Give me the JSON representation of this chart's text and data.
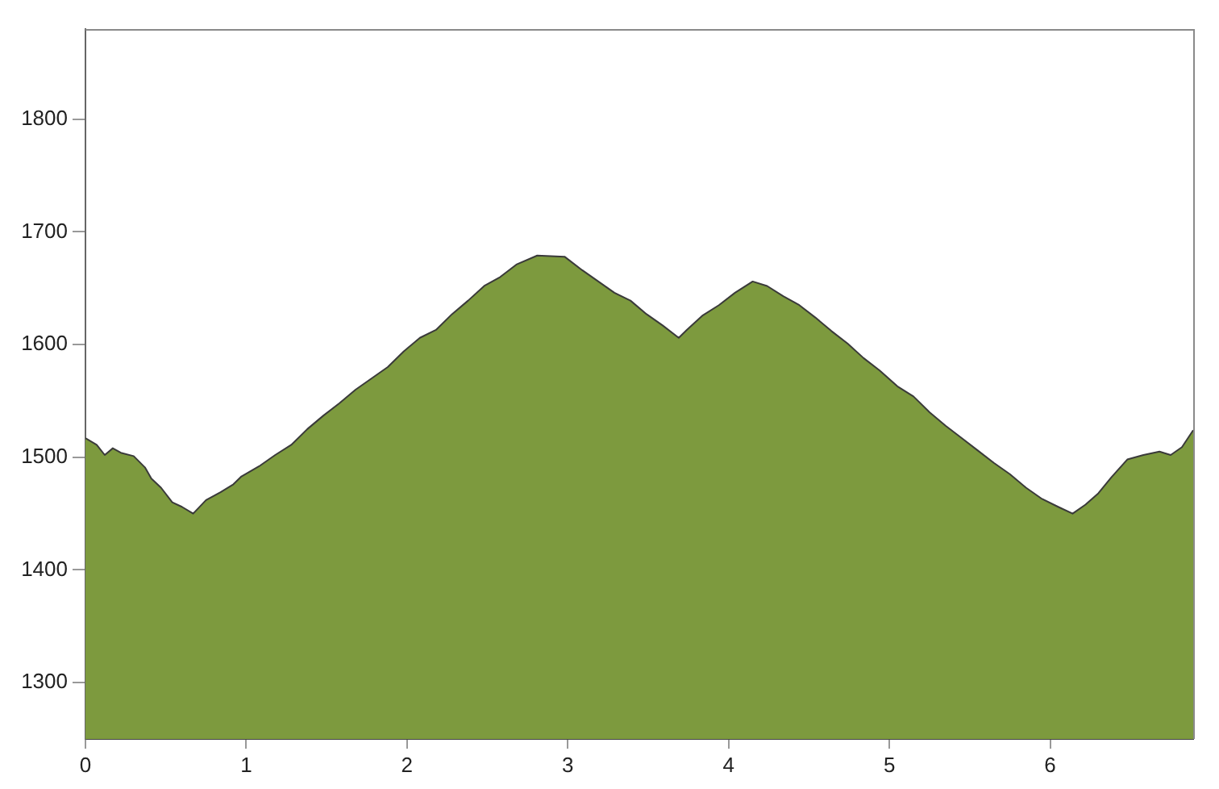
{
  "chart_data": {
    "type": "area",
    "x": [
      0,
      0.07,
      0.12,
      0.17,
      0.22,
      0.3,
      0.37,
      0.41,
      0.47,
      0.54,
      0.6,
      0.67,
      0.75,
      0.84,
      0.92,
      0.97,
      1.08,
      1.18,
      1.28,
      1.38,
      1.48,
      1.58,
      1.68,
      1.78,
      1.88,
      1.98,
      2.08,
      2.18,
      2.28,
      2.38,
      2.48,
      2.58,
      2.68,
      2.81,
      2.98,
      3.09,
      3.19,
      3.29,
      3.39,
      3.49,
      3.59,
      3.69,
      3.74,
      3.84,
      3.94,
      4.04,
      4.15,
      4.24,
      4.34,
      4.44,
      4.54,
      4.64,
      4.74,
      4.84,
      4.94,
      5.05,
      5.15,
      5.25,
      5.35,
      5.45,
      5.55,
      5.65,
      5.75,
      5.85,
      5.95,
      6.05,
      6.14,
      6.22,
      6.3,
      6.38,
      6.48,
      6.58,
      6.68,
      6.75,
      6.82,
      6.89
    ],
    "series": [
      {
        "color": "#7d9a3e",
        "values": [
          1517,
          1511,
          1502,
          1508,
          1504,
          1501,
          1491,
          1481,
          1473,
          1460,
          1456,
          1450,
          1462,
          1469,
          1476,
          1483,
          1492,
          1502,
          1511,
          1525,
          1537,
          1548,
          1560,
          1570,
          1580,
          1594,
          1606,
          1613,
          1627,
          1639,
          1652,
          1660,
          1671,
          1679,
          1678,
          1666,
          1656,
          1646,
          1639,
          1627,
          1617,
          1606,
          1613,
          1626,
          1635,
          1646,
          1656,
          1652,
          1643,
          1635,
          1624,
          1612,
          1601,
          1588,
          1577,
          1563,
          1554,
          1540,
          1528,
          1517,
          1506,
          1495,
          1485,
          1473,
          1463,
          1456,
          1450,
          1458,
          1468,
          1482,
          1498,
          1502,
          1505,
          1502,
          1509,
          1524
        ]
      }
    ],
    "xlim": [
      0,
      6.89
    ],
    "ylim": [
      1250,
      1880
    ],
    "xticks": [
      0,
      1,
      2,
      3,
      4,
      5,
      6
    ],
    "yticks": [
      1300,
      1400,
      1500,
      1600,
      1700,
      1800
    ],
    "grid": false,
    "legend": false
  }
}
